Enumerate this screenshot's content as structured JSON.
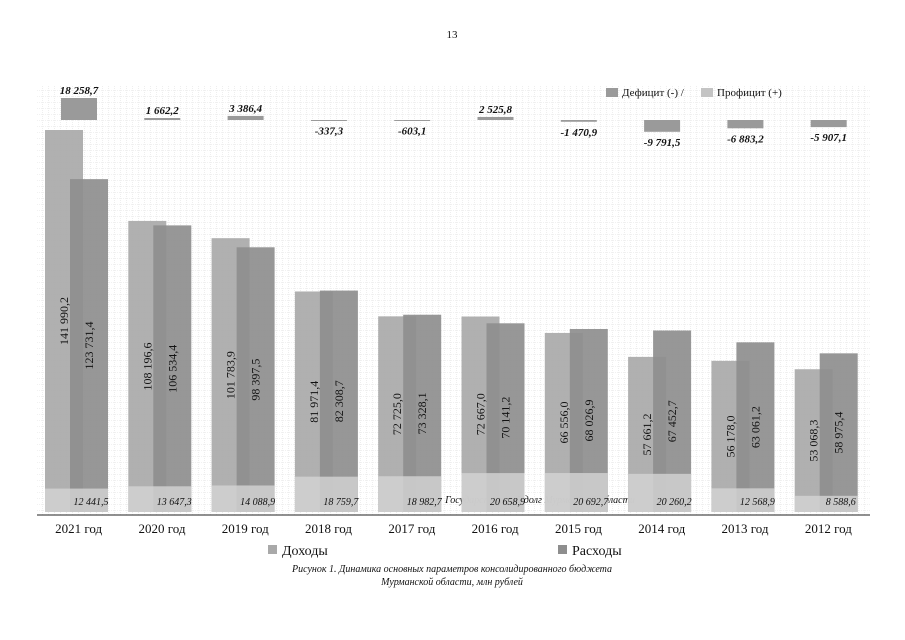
{
  "page_number": "13",
  "chart_data": {
    "type": "bar",
    "categories": [
      "2021 год",
      "2020 год",
      "2019 год",
      "2018 год",
      "2017 год",
      "2016 год",
      "2015 год",
      "2014 год",
      "2013 год",
      "2012 год"
    ],
    "series": [
      {
        "name": "Доходы",
        "color": "#a9a9a9",
        "values": [
          141990.2,
          108196.6,
          101783.9,
          81971.4,
          72725.0,
          72667.0,
          66556.0,
          57661.2,
          56178.0,
          53068.3
        ],
        "value_labels": [
          "141 990,2",
          "108 196,6",
          "101 783,9",
          "81 971,4",
          "72 725,0",
          "72 667,0",
          "66 556,0",
          "57 661,2",
          "56 178,0",
          "53 068,3"
        ]
      },
      {
        "name": "Расходы",
        "color": "#8e8e8e",
        "values": [
          123731.4,
          106534.4,
          98397.5,
          82308.7,
          73328.1,
          70141.2,
          68026.9,
          67452.7,
          63061.2,
          58975.4
        ],
        "value_labels": [
          "123 731,4",
          "106 534,4",
          "98 397,5",
          "82 308,7",
          "73 328,1",
          "70 141,2",
          "68 026,9",
          "67 452,7",
          "63 061,2",
          "58 975,4"
        ]
      }
    ],
    "balance": {
      "legend": [
        "Дефицит (-) /",
        "Профицит (+)"
      ],
      "color": "#9a9a9a",
      "values": [
        18258.7,
        1662.2,
        3386.4,
        -337.3,
        -603.1,
        2525.8,
        -1470.9,
        -9791.5,
        -6883.2,
        -5907.1
      ],
      "value_labels": [
        "18 258,7",
        "1 662,2",
        "3 386,4",
        "-337,3",
        "-603,1",
        "2 525,8",
        "-1 470,9",
        "-9 791,5",
        "-6 883,2",
        "-5 907,1"
      ]
    },
    "debt": {
      "name": "Государственный долг Мурманской области",
      "color": "#d4d4d4",
      "values": [
        12441.5,
        13647.3,
        14088.9,
        18759.7,
        18982.7,
        20658.9,
        20692.7,
        20260.2,
        12568.9,
        8588.6
      ],
      "value_labels": [
        "12 441,5",
        "13 647,3",
        "14 088,9",
        "18 759,7",
        "18 982,7",
        "20 658,9",
        "20 692,7",
        "20 260,2",
        "12 568,9",
        "8 588,6"
      ]
    },
    "caption": [
      "Рисунок 1.  Динамика основных параметров консолидированного бюджета",
      "Мурманской области, млн рублей"
    ]
  }
}
